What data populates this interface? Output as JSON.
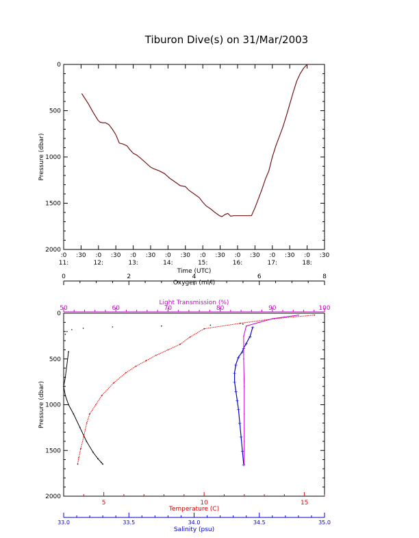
{
  "title": "Tiburon Dive(s) on 31/Mar/2003",
  "chart_data": [
    {
      "type": "line",
      "title": "Tiburon Dive(s) on 31/Mar/2003",
      "xlabel": "Time (UTC)",
      "ylabel": "Pressure (dbar)",
      "x_unit": "decimal hours UTC",
      "xlim": [
        11.0,
        18.5
      ],
      "ylim": [
        2000,
        0
      ],
      "x_tick_labels": [
        {
          "top": ":0",
          "bottom": "11:"
        },
        {
          "top": ":30",
          "bottom": ""
        },
        {
          "top": ":0",
          "bottom": "12:"
        },
        {
          "top": ":30",
          "bottom": ""
        },
        {
          "top": ":0",
          "bottom": "13:"
        },
        {
          "top": ":30",
          "bottom": ""
        },
        {
          "top": ":0",
          "bottom": "14:"
        },
        {
          "top": ":30",
          "bottom": ""
        },
        {
          "top": ":0",
          "bottom": "15:"
        },
        {
          "top": ":30",
          "bottom": ""
        },
        {
          "top": ":0",
          "bottom": "16:"
        },
        {
          "top": ":30",
          "bottom": ""
        },
        {
          "top": ":0",
          "bottom": "17:"
        },
        {
          "top": ":30",
          "bottom": ""
        },
        {
          "top": ":0",
          "bottom": "18:"
        },
        {
          "top": ":30",
          "bottom": ""
        }
      ],
      "y_ticks": [
        0,
        500,
        1000,
        1500,
        2000
      ],
      "series": [
        {
          "color": "#8b1a1a",
          "x": [
            11.52,
            11.7,
            11.85,
            11.98,
            12.05,
            12.12,
            12.2,
            12.3,
            12.4,
            12.5,
            12.6,
            12.7,
            12.82,
            12.9,
            13.0,
            13.1,
            13.2,
            13.35,
            13.5,
            13.6,
            13.75,
            13.9,
            14.05,
            14.2,
            14.35,
            14.5,
            14.6,
            14.75,
            14.9,
            15.0,
            15.1,
            15.22,
            15.35,
            15.48,
            15.55,
            15.65,
            15.72,
            15.8,
            15.9,
            16.0,
            16.1,
            16.2,
            16.3,
            16.4,
            16.5,
            16.6,
            16.7,
            16.8,
            16.9,
            17.0,
            17.1,
            17.2,
            17.3,
            17.4,
            17.5,
            17.6,
            17.7,
            17.8,
            17.9,
            18.0
          ],
          "y": [
            315,
            420,
            520,
            600,
            625,
            630,
            630,
            650,
            700,
            760,
            850,
            860,
            880,
            920,
            960,
            980,
            1010,
            1060,
            1110,
            1130,
            1150,
            1180,
            1230,
            1270,
            1310,
            1320,
            1360,
            1400,
            1440,
            1490,
            1530,
            1560,
            1600,
            1635,
            1645,
            1620,
            1610,
            1640,
            1635,
            1635,
            1635,
            1635,
            1635,
            1635,
            1550,
            1450,
            1350,
            1240,
            1150,
            1000,
            880,
            780,
            680,
            560,
            430,
            300,
            180,
            100,
            40,
            0
          ]
        }
      ]
    },
    {
      "type": "scatter",
      "ylabel": "Pressure (dbar)",
      "ylim": [
        2000,
        0
      ],
      "y_ticks": [
        0,
        500,
        1000,
        1500,
        2000
      ],
      "axes": {
        "oxygen": {
          "label": "Oxygen (ml/l)",
          "range": [
            0,
            8
          ],
          "ticks": [
            0,
            2,
            4,
            6,
            8
          ],
          "color": "#000000",
          "position": "top"
        },
        "light_transmission": {
          "label": "Light Transmission (%)",
          "range": [
            50,
            100
          ],
          "ticks": [
            50,
            60,
            70,
            80,
            90,
            100
          ],
          "color": "#cc00cc",
          "position": "top"
        },
        "temperature": {
          "label": "Temperature (C)",
          "range": [
            3,
            16
          ],
          "ticks": [
            5,
            10,
            15
          ],
          "color": "#dd0000",
          "position": "bottom"
        },
        "salinity": {
          "label": "Salinity (psu)",
          "range": [
            33.0,
            35.0
          ],
          "ticks": [
            "33.0",
            "33.5",
            "34.0",
            "34.5",
            "35.0"
          ],
          "color": "#0000cc",
          "position": "bottom"
        }
      },
      "series": [
        {
          "variable": "oxygen",
          "color": "#000000",
          "x": [
            0.05,
            0.1,
            0.25,
            0.6,
            1.5,
            3.0,
            4.5,
            5.5,
            0.15,
            0.05,
            0.0,
            0.05,
            0.15,
            0.3,
            0.5,
            0.7,
            0.9,
            1.05,
            1.15,
            1.2
          ],
          "y": [
            230,
            200,
            180,
            165,
            150,
            140,
            130,
            120,
            420,
            700,
            800,
            900,
            1000,
            1100,
            1250,
            1400,
            1520,
            1590,
            1630,
            1650
          ]
        },
        {
          "variable": "temperature",
          "color": "#dd0000",
          "x": [
            15.5,
            13.5,
            11.8,
            10.0,
            9.3,
            8.8,
            8.2,
            7.6,
            7.1,
            6.6,
            6.1,
            5.5,
            4.9,
            4.6,
            4.3,
            4.15,
            4.0,
            3.85,
            3.75,
            3.7
          ],
          "y": [
            20,
            60,
            110,
            170,
            260,
            340,
            400,
            460,
            520,
            580,
            650,
            760,
            900,
            1000,
            1100,
            1200,
            1350,
            1480,
            1580,
            1650
          ]
        },
        {
          "variable": "salinity",
          "color": "#0000cc",
          "x": [
            34.45,
            34.43,
            34.4,
            34.38,
            34.37,
            34.34,
            34.32,
            34.31,
            34.31,
            34.32,
            34.33,
            34.34,
            34.35,
            34.36,
            34.37,
            34.38
          ],
          "y": [
            150,
            250,
            330,
            380,
            420,
            480,
            560,
            650,
            750,
            850,
            950,
            1050,
            1200,
            1350,
            1500,
            1650
          ]
        },
        {
          "variable": "light_transmission",
          "color": "#cc00cc",
          "x": [
            95,
            90,
            85,
            84.5,
            84.5,
            84.6,
            84.6,
            84.6,
            84.6
          ],
          "y": [
            20,
            60,
            140,
            250,
            500,
            800,
            1100,
            1400,
            1650
          ]
        }
      ]
    }
  ]
}
